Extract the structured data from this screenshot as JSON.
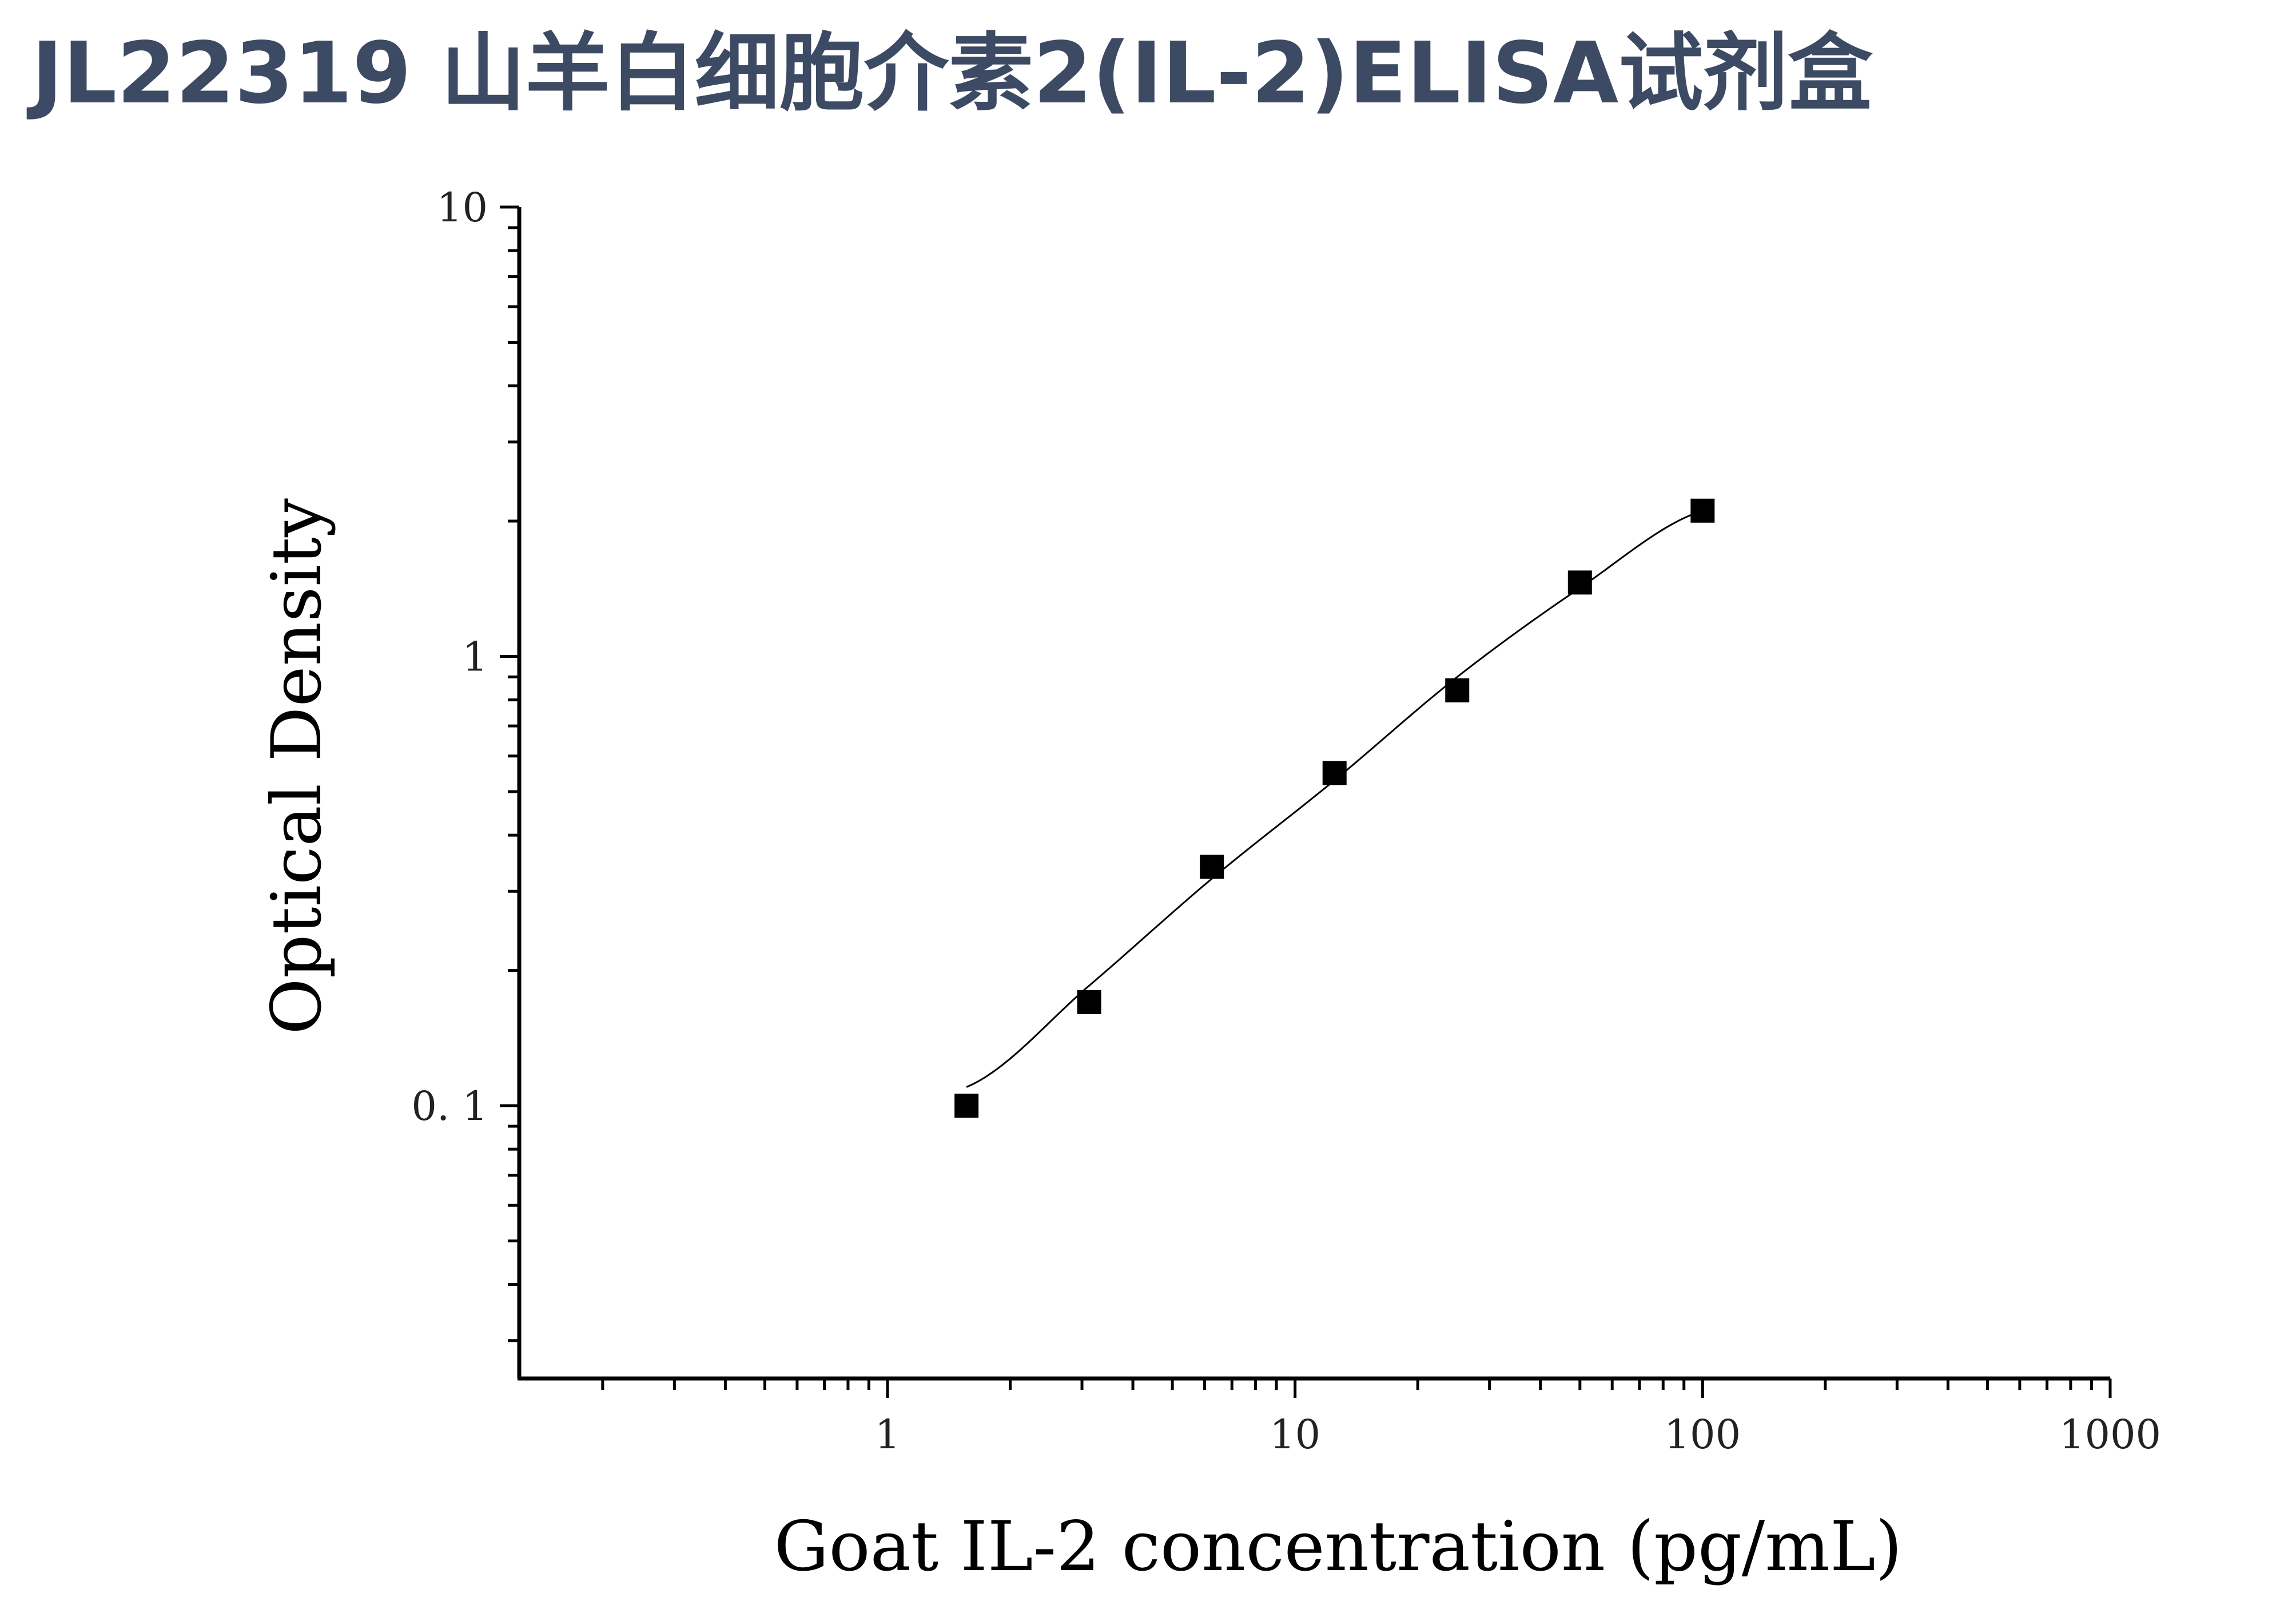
{
  "header": {
    "title": "JL22319 山羊白细胞介素2(IL-2)ELISA试剂盒"
  },
  "chart_data": {
    "type": "scatter",
    "title": "",
    "xlabel": "Goat IL-2 concentration (pg/mL)",
    "ylabel": "Optical Density",
    "x_scale": "log",
    "y_scale": "log",
    "xlim": [
      0.12,
      1000
    ],
    "ylim": [
      0.026,
      10
    ],
    "x_ticks": [
      1,
      10,
      100,
      1000
    ],
    "x_tick_labels": [
      "1",
      "10",
      "100",
      "1000"
    ],
    "y_ticks": [
      0.1,
      1,
      10
    ],
    "y_tick_labels": [
      "0. 1",
      "1",
      "10"
    ],
    "grid": false,
    "legend": "none",
    "series": [
      {
        "marker": "square",
        "color": "#000000",
        "x": [
          1.5625,
          3.125,
          6.25,
          12.5,
          25,
          50,
          100
        ],
        "y": [
          0.1,
          0.17,
          0.34,
          0.55,
          0.84,
          1.46,
          2.11
        ]
      }
    ],
    "fit_curve": {
      "color": "#000000",
      "x": [
        1.5625,
        3.125,
        6.25,
        12.5,
        25,
        50,
        100
      ],
      "y": [
        0.11,
        0.185,
        0.32,
        0.53,
        0.9,
        1.42,
        2.11
      ]
    }
  }
}
